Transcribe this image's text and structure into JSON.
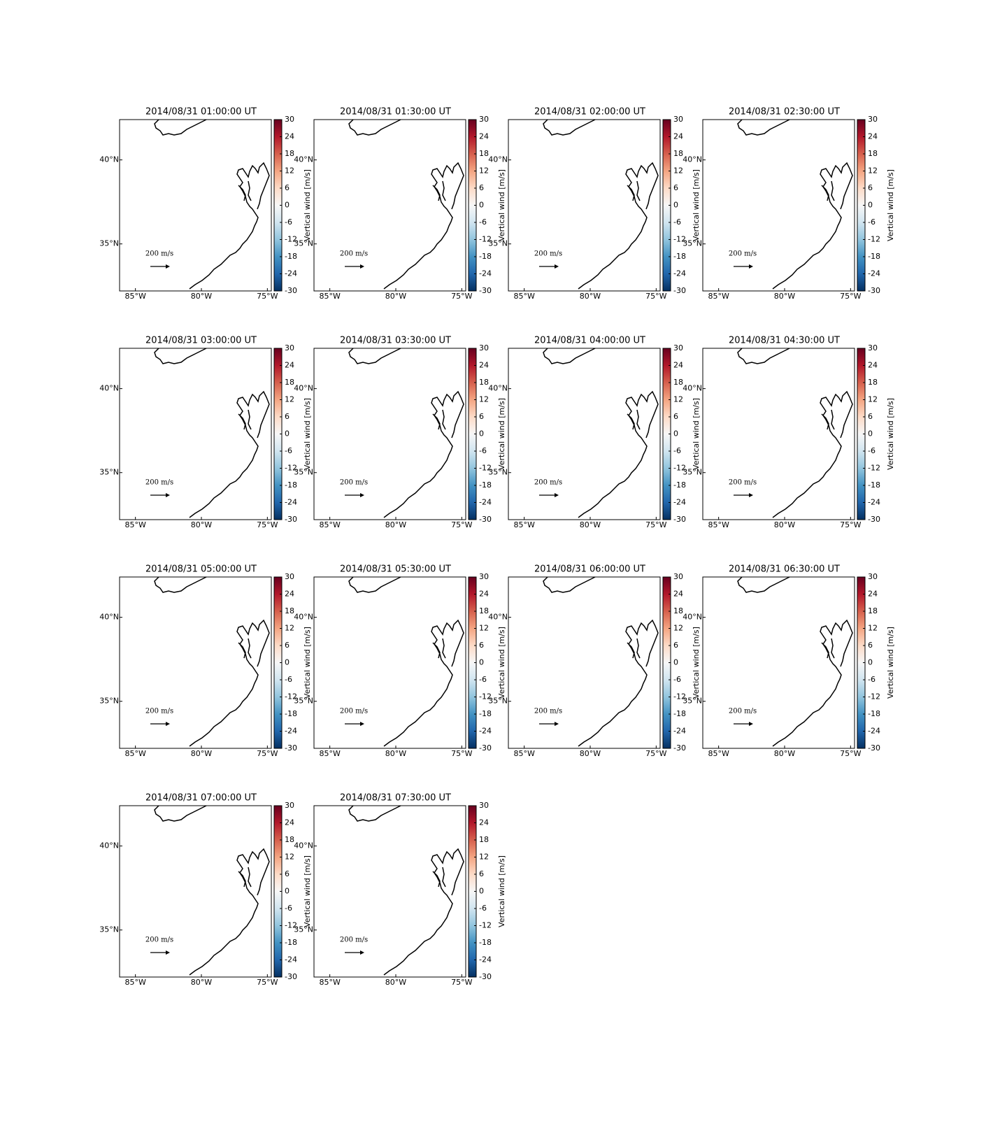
{
  "panels": [
    {
      "title": "2014/08/31 01:00:00 UT"
    },
    {
      "title": "2014/08/31 01:30:00 UT"
    },
    {
      "title": "2014/08/31 02:00:00 UT"
    },
    {
      "title": "2014/08/31 02:30:00 UT"
    },
    {
      "title": "2014/08/31 03:00:00 UT"
    },
    {
      "title": "2014/08/31 03:30:00 UT"
    },
    {
      "title": "2014/08/31 04:00:00 UT"
    },
    {
      "title": "2014/08/31 04:30:00 UT"
    },
    {
      "title": "2014/08/31 05:00:00 UT"
    },
    {
      "title": "2014/08/31 05:30:00 UT"
    },
    {
      "title": "2014/08/31 06:00:00 UT"
    },
    {
      "title": "2014/08/31 06:30:00 UT"
    },
    {
      "title": "2014/08/31 07:00:00 UT"
    },
    {
      "title": "2014/08/31 07:30:00 UT"
    }
  ],
  "map": {
    "xlim": [
      -86.2,
      -74.7
    ],
    "ylim": [
      32.2,
      42.4
    ],
    "xticks": [
      {
        "value": -85,
        "label": "85°W"
      },
      {
        "value": -80,
        "label": "80°W"
      },
      {
        "value": -75,
        "label": "75°W"
      }
    ],
    "yticks": [
      {
        "value": 35,
        "label": "35°N"
      },
      {
        "value": 40,
        "label": "40°N"
      }
    ],
    "quiver_key": "200 m/s"
  },
  "colorbar": {
    "label": "Vertical wind [m/s]",
    "lim": [
      -30,
      30
    ],
    "ticks": [
      -30,
      -24,
      -18,
      -12,
      -6,
      0,
      6,
      12,
      18,
      24,
      30
    ],
    "colors": [
      "#053061",
      "#2166ac",
      "#4393c3",
      "#92c5de",
      "#d1e5f0",
      "#f7f7f7",
      "#fddbc7",
      "#f4a582",
      "#d6604d",
      "#b2182b",
      "#67001f"
    ]
  }
}
